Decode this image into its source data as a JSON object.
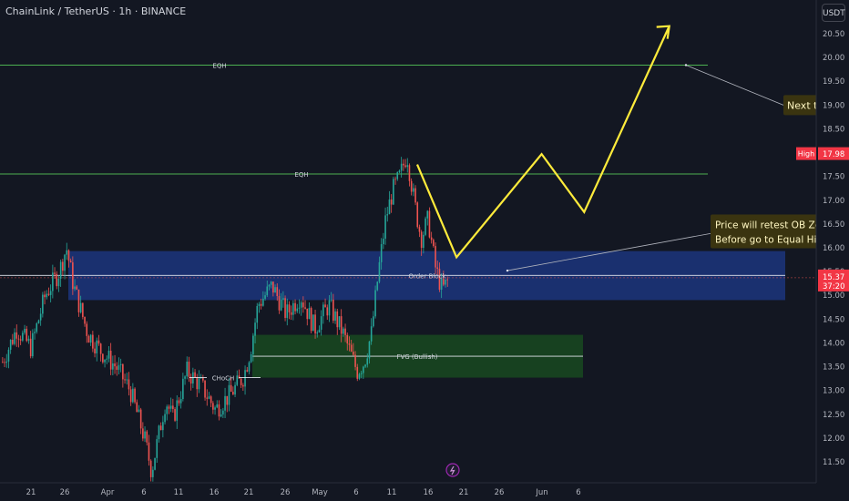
{
  "header": {
    "symbol": "ChainLink / TetherUS · 1h · BINANCE"
  },
  "currency_button": "USDT",
  "colors": {
    "background": "#131722",
    "up_candle": "#26a69a",
    "down_candle": "#ef5350",
    "level_line": "#4caf50",
    "order_block": "#1e3a8a",
    "fvg_zone": "#1b5e20",
    "projection": "#ffeb3b",
    "callout_bg": "#3a3410"
  },
  "chart_data": {
    "type": "candlestick",
    "ylim": [
      11.2,
      20.95
    ],
    "y_ticks": [
      "20.50",
      "20.00",
      "19.50",
      "19.00",
      "18.50",
      "18.00",
      "17.50",
      "17.00",
      "16.50",
      "16.00",
      "15.50",
      "15.00",
      "14.50",
      "14.00",
      "13.50",
      "13.00",
      "12.50",
      "12.00",
      "11.50"
    ],
    "x_ticks": [
      "21",
      "26",
      "Apr",
      "6",
      "11",
      "16",
      "21",
      "26",
      "May",
      "6",
      "11",
      "16",
      "21",
      "26",
      "Jun",
      "6"
    ],
    "price_path": [
      [
        "Mar 17",
        13.6
      ],
      [
        "Mar 19",
        14.3
      ],
      [
        "Mar 21",
        13.9
      ],
      [
        "Mar 23",
        15.0
      ],
      [
        "Mar 25",
        15.5
      ],
      [
        "Mar 26",
        16.0
      ],
      [
        "Mar 27",
        15.2
      ],
      [
        "Mar 29",
        14.2
      ],
      [
        "Mar 31",
        13.8
      ],
      [
        "Apr 2",
        13.5
      ],
      [
        "Apr 4",
        13.0
      ],
      [
        "Apr 6",
        12.0
      ],
      [
        "Apr 7",
        11.3
      ],
      [
        "Apr 9",
        12.8
      ],
      [
        "Apr 10",
        12.4
      ],
      [
        "Apr 12",
        13.4
      ],
      [
        "Apr 14",
        13.1
      ],
      [
        "Apr 16",
        12.6
      ],
      [
        "Apr 18",
        12.9
      ],
      [
        "Apr 20",
        13.3
      ],
      [
        "Apr 21",
        13.9
      ],
      [
        "Apr 22",
        14.8
      ],
      [
        "Apr 24",
        15.2
      ],
      [
        "Apr 26",
        14.6
      ],
      [
        "Apr 28",
        15.0
      ],
      [
        "Apr 30",
        14.3
      ],
      [
        "May 2",
        14.8
      ],
      [
        "May 4",
        14.2
      ],
      [
        "May 6",
        13.4
      ],
      [
        "May 7",
        13.6
      ],
      [
        "May 8",
        14.2
      ],
      [
        "May 9",
        15.5
      ],
      [
        "May 10",
        16.6
      ],
      [
        "May 11",
        17.2
      ],
      [
        "May 12",
        17.5
      ],
      [
        "May 13",
        17.98
      ],
      [
        "May 14",
        17.0
      ],
      [
        "May 15",
        16.2
      ],
      [
        "May 16",
        16.6
      ],
      [
        "May 17",
        15.6
      ],
      [
        "May 18",
        15.1
      ],
      [
        "May 19",
        15.37
      ]
    ],
    "levels": [
      {
        "label": "EQH",
        "price": 19.84
      },
      {
        "label": "EQH",
        "price": 17.55
      }
    ],
    "zones": [
      {
        "label": "Order Block",
        "top": 15.93,
        "bottom": 14.9,
        "mid": 15.42
      },
      {
        "label": "FVG (Bullish)",
        "top": 14.17,
        "bottom": 13.27,
        "mid": 13.72
      }
    ],
    "choch": {
      "label": "CHoCH",
      "price": 13.27
    },
    "projection": [
      [
        "May 20",
        15.8
      ],
      [
        "Jun 1",
        17.97
      ],
      [
        "Jun 7",
        16.75
      ],
      [
        "Jun 19",
        20.66
      ]
    ],
    "annotations": [
      {
        "text": "Next ta",
        "price": 19.0
      },
      {
        "text": "Price will retest OB Zon",
        "price": 16.45
      },
      {
        "text": "Before go to Equal High",
        "price": 16.18
      }
    ],
    "price_labels": [
      {
        "text": "High",
        "value": "17.98"
      },
      {
        "text": "15.37",
        "sub": "37:20"
      }
    ]
  }
}
